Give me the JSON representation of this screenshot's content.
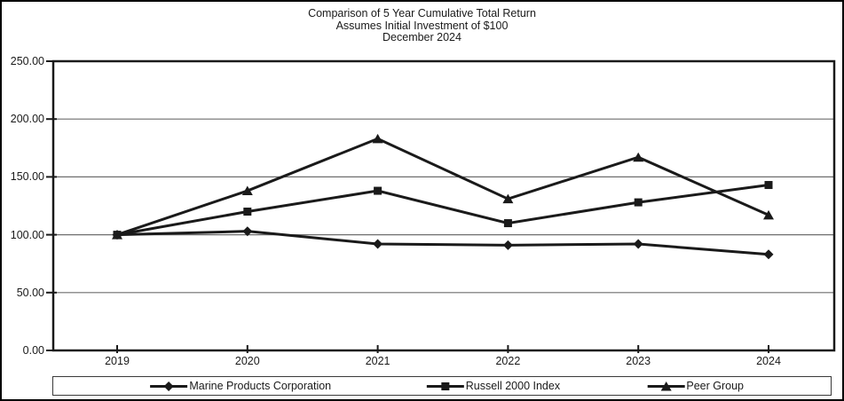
{
  "chart_data": {
    "type": "line",
    "title": "Comparison of 5 Year Cumulative Total Return",
    "subtitle": "Assumes Initial Investment of $100",
    "date_label": "December 2024",
    "categories": [
      "2019",
      "2020",
      "2021",
      "2022",
      "2023",
      "2024"
    ],
    "series": [
      {
        "name": "Marine Products Corporation",
        "marker": "diamond",
        "values": [
          100,
          103,
          92,
          91,
          92,
          83
        ]
      },
      {
        "name": "Russell 2000 Index",
        "marker": "square",
        "values": [
          100,
          120,
          138,
          110,
          128,
          143
        ]
      },
      {
        "name": "Peer Group",
        "marker": "triangle",
        "values": [
          100,
          138,
          183,
          131,
          167,
          117
        ]
      }
    ],
    "ylim": [
      0,
      250
    ],
    "y_tick_interval": 50,
    "y_tick_labels_top_down": [
      "250.00",
      "200.00",
      "150.00",
      "100.00",
      "50.00",
      "0.00"
    ],
    "grid": true,
    "legend_position": "bottom",
    "colors": {
      "line": "#1a1a1a",
      "grid": "#6e6e6e",
      "background": "#ffffff",
      "frame_border": "#000000"
    }
  }
}
